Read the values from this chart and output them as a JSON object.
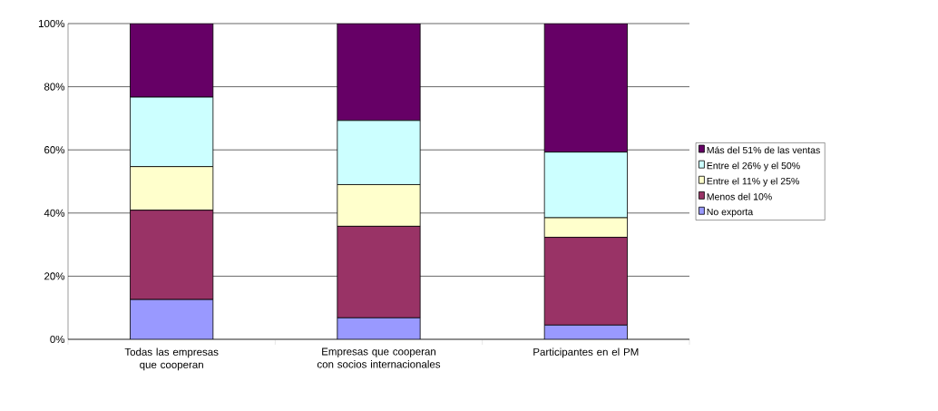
{
  "chart_data": {
    "type": "bar",
    "stacked": true,
    "categories": [
      "Todas las empresas que cooperan",
      "Empresas que cooperan con socios internacionales",
      "Participantes en el PM"
    ],
    "series": [
      {
        "name": "No exporta",
        "color": "#9999ff",
        "values": [
          12.6,
          6.8,
          4.5
        ]
      },
      {
        "name": "Menos del 10%",
        "color": "#993366",
        "values": [
          28.3,
          29.0,
          27.8
        ]
      },
      {
        "name": "Entre el 11% y el 25%",
        "color": "#ffffcc",
        "values": [
          13.8,
          13.2,
          6.2
        ]
      },
      {
        "name": "Entre el 26% y el 50%",
        "color": "#ccffff",
        "values": [
          22.0,
          20.3,
          20.8
        ]
      },
      {
        "name": "Más del 51% de las ventas",
        "color": "#660066",
        "values": [
          23.3,
          30.7,
          40.7
        ]
      }
    ],
    "ylim": [
      0,
      100
    ],
    "yticks": [
      {
        "value": 0,
        "label": "0%"
      },
      {
        "value": 20,
        "label": "20%"
      },
      {
        "value": 40,
        "label": "40%"
      },
      {
        "value": 60,
        "label": "60%"
      },
      {
        "value": 80,
        "label": "80%"
      },
      {
        "value": 100,
        "label": "100%"
      }
    ],
    "grid": "y",
    "legend": "right"
  }
}
